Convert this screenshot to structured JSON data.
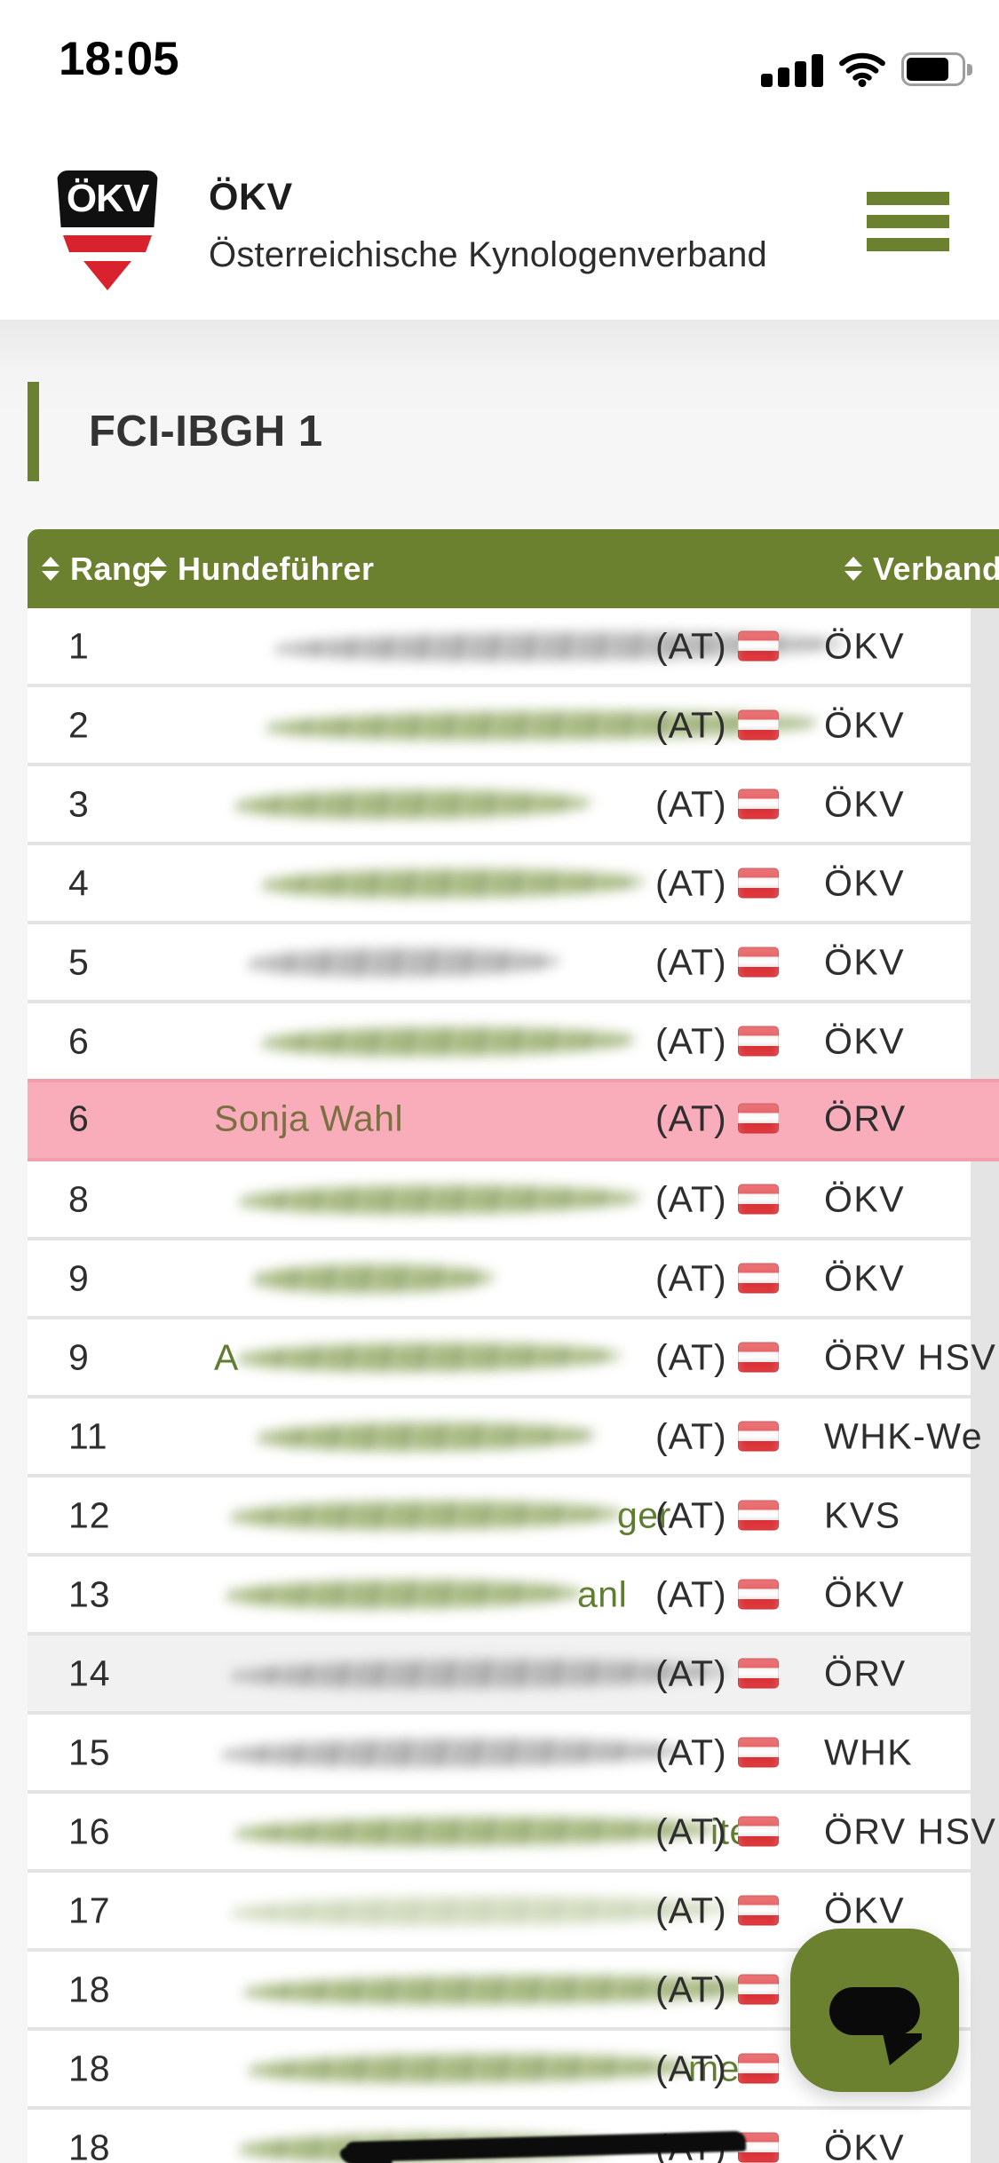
{
  "status_bar": {
    "time": "18:05",
    "signal_icon": "cellular-full",
    "wifi_icon": "wifi-full",
    "battery_icon": "battery-high"
  },
  "header": {
    "logo_text": "ÖKV",
    "title": "ÖKV",
    "subtitle": "Österreichische Kynologenverband",
    "menu_icon": "hamburger"
  },
  "page": {
    "title": "FCI-IBGH 1"
  },
  "table": {
    "columns": [
      {
        "label": "Rang",
        "sortable": true
      },
      {
        "label": "Hundeführer",
        "sortable": true
      },
      {
        "label": "Verband",
        "sortable": true,
        "visible_part": "Verba"
      }
    ],
    "rows": [
      {
        "rank": "1",
        "name": "",
        "redaction": "gray",
        "scr_off": 70,
        "scr_w": 640,
        "country": "(AT)",
        "club": "ÖKV",
        "highlight": false
      },
      {
        "rank": "2",
        "name": "",
        "redaction": "green",
        "scr_off": 60,
        "scr_w": 620,
        "country": "(AT)",
        "club": "ÖKV",
        "highlight": false
      },
      {
        "rank": "3",
        "name": "",
        "redaction": "green",
        "scr_off": 25,
        "scr_w": 400,
        "country": "(AT)",
        "club": "ÖKV",
        "highlight": false
      },
      {
        "rank": "4",
        "name": "",
        "redaction": "green",
        "scr_off": 55,
        "scr_w": 430,
        "country": "(AT)",
        "club": "ÖKV",
        "highlight": false
      },
      {
        "rank": "5",
        "name": "",
        "redaction": "gray",
        "scr_off": 40,
        "scr_w": 350,
        "country": "(AT)",
        "club": "ÖKV",
        "highlight": false
      },
      {
        "rank": "6",
        "name": "",
        "redaction": "green",
        "scr_off": 55,
        "scr_w": 420,
        "country": "(AT)",
        "club": "ÖKV",
        "highlight": false
      },
      {
        "rank": "6",
        "name": "Sonja Wahl",
        "redaction": null,
        "country": "(AT)",
        "club": "ÖRV",
        "highlight": true
      },
      {
        "rank": "8",
        "name": "",
        "redaction": "green",
        "scr_off": 30,
        "scr_w": 450,
        "country": "(AT)",
        "club": "ÖKV",
        "highlight": false
      },
      {
        "rank": "9",
        "name": "",
        "redaction": "green",
        "scr_off": 45,
        "scr_w": 270,
        "country": "(AT)",
        "club": "ÖKV",
        "highlight": false
      },
      {
        "rank": "9",
        "name": "",
        "redaction": "green",
        "prefix": "A",
        "scr_off": 0,
        "scr_w": 430,
        "country": "(AT)",
        "club": "ÖRV HSV",
        "highlight": false
      },
      {
        "rank": "11",
        "name": "",
        "redaction": "green",
        "scr_off": 50,
        "scr_w": 380,
        "country": "(AT)",
        "club": "WHK-We",
        "highlight": false
      },
      {
        "rank": "12",
        "name": "",
        "redaction": "green",
        "suffix": "ger",
        "scr_off": 20,
        "scr_w": 440,
        "country": "(AT)",
        "club": "KVS",
        "highlight": false
      },
      {
        "rank": "13",
        "name": "",
        "redaction": "green",
        "suffix": "anl",
        "scr_off": 15,
        "scr_w": 400,
        "country": "(AT)",
        "club": "ÖKV",
        "highlight": false
      },
      {
        "rank": "14",
        "name": "",
        "redaction": "gray",
        "scr_off": 20,
        "scr_w": 560,
        "country": "(AT)",
        "club": "ÖRV",
        "highlight": false,
        "row_bg": "alt"
      },
      {
        "rank": "15",
        "name": "",
        "redaction": "gray",
        "scr_off": 10,
        "scr_w": 520,
        "country": "(AT)",
        "club": "WHK",
        "highlight": false
      },
      {
        "rank": "16",
        "name": "",
        "redaction": "green",
        "suffix": "iter",
        "scr_off": 25,
        "scr_w": 540,
        "country": "(AT)",
        "club": "ÖRV HSV",
        "highlight": false
      },
      {
        "rank": "17",
        "name": "",
        "redaction": "green-faint",
        "scr_off": 20,
        "scr_w": 560,
        "country": "(AT)",
        "club": "ÖKV",
        "highlight": false
      },
      {
        "rank": "18",
        "name": "",
        "redaction": "green",
        "scr_off": 35,
        "scr_w": 600,
        "country": "(AT)",
        "club": "",
        "highlight": false
      },
      {
        "rank": "18",
        "name": "",
        "redaction": "green",
        "suffix": "meir",
        "scr_off": 40,
        "scr_w": 500,
        "country": "(AT)",
        "club": "",
        "highlight": false
      },
      {
        "rank": "18",
        "name": "",
        "redaction": "green",
        "scr_off": 30,
        "scr_w": 420,
        "country": "(AT)",
        "club": "ÖKV",
        "highlight": false,
        "marker": true
      }
    ]
  },
  "chat": {
    "icon": "speech-bubble"
  },
  "colors": {
    "accent_green": "#6c8130",
    "highlight_pink": "#f9adbb",
    "highlight_pink_dark": "#f29eac",
    "link_green": "#5f7c31",
    "highlight_name_text": "#7c7043",
    "flag_red": "#e13b3f",
    "text_dark": "#2e2e2e"
  }
}
